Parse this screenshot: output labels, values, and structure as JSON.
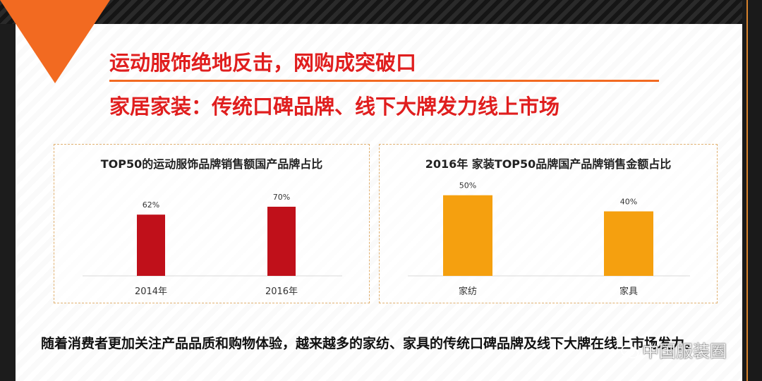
{
  "headings": {
    "line1": "运动服饰绝地反击，网购成突破口",
    "line2": "家居家装：传统口碑品牌、线下大牌发力线上市场"
  },
  "colors": {
    "accent_orange": "#f26a21",
    "heading_red": "#e01e1e",
    "bar_red": "#c0101a",
    "bar_orange": "#f5a00f"
  },
  "chart_data": [
    {
      "type": "bar",
      "title": "TOP50的运动服饰品牌销售额国产品牌占比",
      "categories": [
        "2014年",
        "2016年"
      ],
      "values": [
        62,
        70
      ],
      "value_labels": [
        "62%",
        "70%"
      ],
      "ylim": [
        0,
        100
      ],
      "grid": false,
      "color": "#c0101a"
    },
    {
      "type": "bar",
      "title": "2016年 家装TOP50品牌国产品牌销售金额占比",
      "categories": [
        "家纺",
        "家具"
      ],
      "values": [
        50,
        40
      ],
      "value_labels": [
        "50%",
        "40%"
      ],
      "ylim": [
        0,
        70
      ],
      "grid": false,
      "color": "#f5a00f"
    }
  ],
  "body_text": "随着消费者更加关注产品品质和购物体验，越来越多的家纺、家具的传统口碑品牌及线下大牌在线上市场发力。",
  "watermark": {
    "text": "中国服装圈",
    "icon": "wechat-icon"
  }
}
